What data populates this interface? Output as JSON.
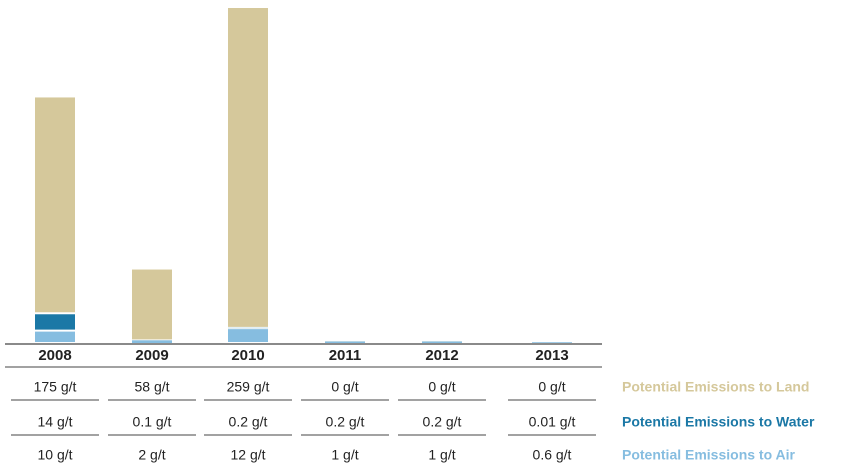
{
  "chart_data": {
    "type": "bar",
    "stacked": true,
    "categories": [
      "2008",
      "2009",
      "2010",
      "2011",
      "2012",
      "2013"
    ],
    "series": [
      {
        "name": "Potential Emissions to Land",
        "color": "#d5c89b",
        "values": [
          175,
          58,
          259,
          0,
          0,
          0
        ],
        "value_labels": [
          "175 g/t",
          "58 g/t",
          "259 g/t",
          "0 g/t",
          "0 g/t",
          "0 g/t"
        ]
      },
      {
        "name": "Potential Emissions to Water",
        "color": "#1b78a6",
        "values": [
          14,
          0.1,
          0.2,
          0.2,
          0.2,
          0.01
        ],
        "value_labels": [
          "14 g/t",
          "0.1 g/t",
          "0.2 g/t",
          "0.2 g/t",
          "0.2 g/t",
          "0.01 g/t"
        ]
      },
      {
        "name": "Potential Emissions to Air",
        "color": "#86bde0",
        "values": [
          10,
          2,
          12,
          1,
          1,
          0.6
        ],
        "value_labels": [
          "10 g/t",
          "2 g/t",
          "12 g/t",
          "1 g/t",
          "1 g/t",
          "0.6 g/t"
        ]
      }
    ]
  }
}
